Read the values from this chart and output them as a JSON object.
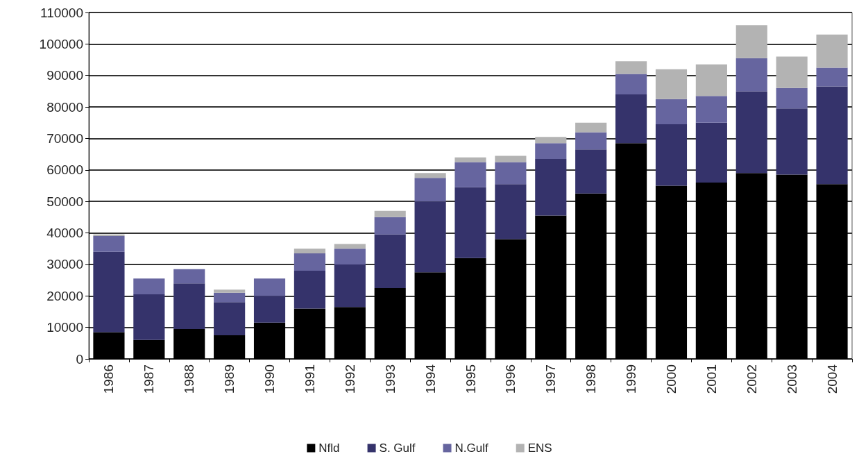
{
  "chart_data": {
    "type": "bar",
    "stacked": true,
    "categories": [
      "1986",
      "1987",
      "1988",
      "1989",
      "1990",
      "1991",
      "1992",
      "1993",
      "1994",
      "1995",
      "1996",
      "1997",
      "1998",
      "1999",
      "2000",
      "2001",
      "2002",
      "2003",
      "2004"
    ],
    "series": [
      {
        "name": "Nfld",
        "color": "#000000",
        "values": [
          8500,
          6000,
          9500,
          7500,
          11500,
          16000,
          16500,
          22500,
          27500,
          32000,
          38000,
          45500,
          52500,
          68500,
          55000,
          56000,
          59000,
          58500,
          55500
        ]
      },
      {
        "name": "S. Gulf",
        "color": "#35336b",
        "values": [
          25500,
          14500,
          14500,
          10500,
          8500,
          12000,
          13500,
          17000,
          22500,
          22500,
          17500,
          18000,
          14000,
          15500,
          19500,
          19000,
          26000,
          21000,
          31000
        ]
      },
      {
        "name": "N.Gulf",
        "color": "#66659f",
        "values": [
          5000,
          5000,
          4500,
          3000,
          5500,
          5500,
          5000,
          5500,
          7500,
          8000,
          7000,
          5000,
          5500,
          6500,
          8000,
          8500,
          10500,
          6500,
          6000
        ]
      },
      {
        "name": "ENS",
        "color": "#b3b3b3",
        "values": [
          500,
          0,
          0,
          1000,
          0,
          1500,
          1500,
          2000,
          1500,
          1500,
          2000,
          2000,
          3000,
          4000,
          9500,
          10000,
          10500,
          10000,
          10500
        ]
      }
    ],
    "ylim": [
      0,
      110000
    ],
    "yticks": [
      0,
      10000,
      20000,
      30000,
      40000,
      50000,
      60000,
      70000,
      80000,
      90000,
      100000,
      110000
    ],
    "grid": "y",
    "legend": "bottom"
  }
}
